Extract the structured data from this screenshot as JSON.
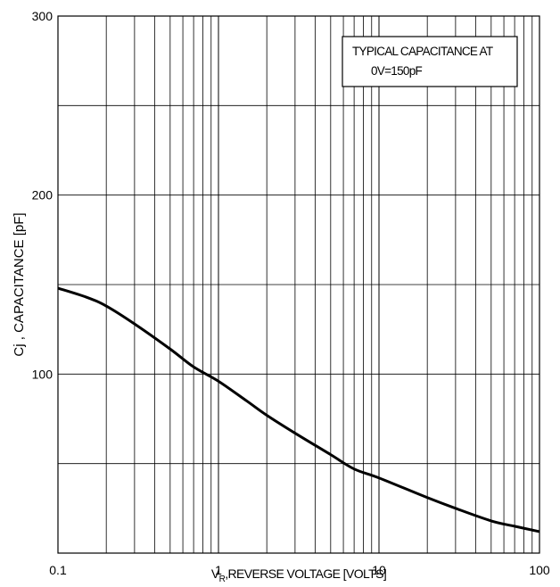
{
  "chart_data": {
    "type": "line",
    "title": "",
    "xlabel_prefix": "V",
    "xlabel_sub": "R",
    "xlabel_rest": ",REVERSE VOLTAGE [VOLTS]",
    "ylabel": "Cj , CAPACITANCE [pF]",
    "x_scale": "log",
    "xlim": [
      0.1,
      100
    ],
    "ylim": [
      0,
      300
    ],
    "x_ticks": [
      "0.1",
      "1",
      "10",
      "100"
    ],
    "y_ticks": [
      "100",
      "200",
      "300"
    ],
    "grid": true,
    "annotation": [
      "TYPICAL CAPACITANCE AT",
      "0V=150pF"
    ],
    "series": [
      {
        "x": [
          0.1,
          0.15,
          0.2,
          0.3,
          0.5,
          0.7,
          1,
          1.5,
          2,
          3,
          5,
          7,
          10,
          20,
          30,
          50,
          70,
          100
        ],
        "y": [
          148,
          143,
          138,
          128,
          114,
          104,
          96,
          85,
          77,
          67,
          55,
          47,
          42,
          31,
          25,
          18,
          15,
          12
        ]
      }
    ]
  }
}
